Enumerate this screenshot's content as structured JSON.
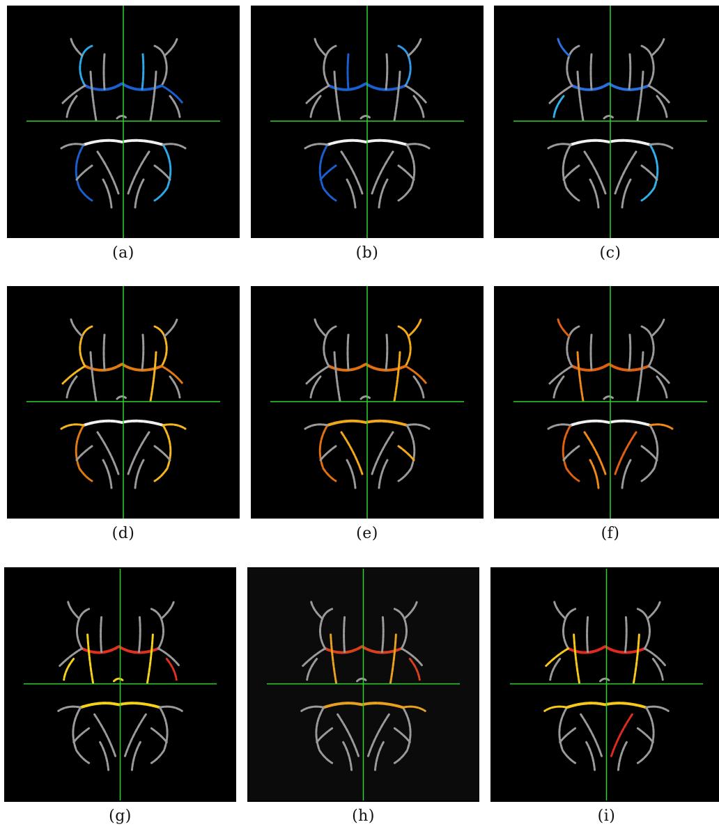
{
  "panels": [
    {
      "id": "a",
      "caption": "(a)",
      "highlight": "#2aa8e8",
      "highlight2": "#1a5fd0",
      "background": "#000000"
    },
    {
      "id": "b",
      "caption": "(b)",
      "highlight": "#2e9ae6",
      "highlight2": "#1a5fd0",
      "background": "#000000"
    },
    {
      "id": "c",
      "caption": "(c)",
      "highlight": "#30b0ea",
      "highlight2": "#2a6fe0",
      "background": "#000000"
    },
    {
      "id": "d",
      "caption": "(d)",
      "highlight": "#f5b51e",
      "highlight2": "#e07a10",
      "background": "#000000"
    },
    {
      "id": "e",
      "caption": "(e)",
      "highlight": "#f2a818",
      "highlight2": "#e07010",
      "background": "#000000"
    },
    {
      "id": "f",
      "caption": "(f)",
      "highlight": "#ef8a1a",
      "highlight2": "#e06010",
      "background": "#000000"
    },
    {
      "id": "g",
      "caption": "(g)",
      "highlight": "#f5d21a",
      "highlight2": "#e03020",
      "background": "#000000"
    },
    {
      "id": "h",
      "caption": "(h)",
      "highlight": "#e8a020",
      "highlight2": "#d84020",
      "background": "#0b0b0b"
    },
    {
      "id": "i",
      "caption": "(i)",
      "highlight": "#f5c81a",
      "highlight2": "#e02a20",
      "background": "#000000"
    }
  ],
  "colors": {
    "crosshair": "#2fd22f",
    "tract_gray": "#9a9a9a",
    "tract_white": "#f0f0f0"
  }
}
